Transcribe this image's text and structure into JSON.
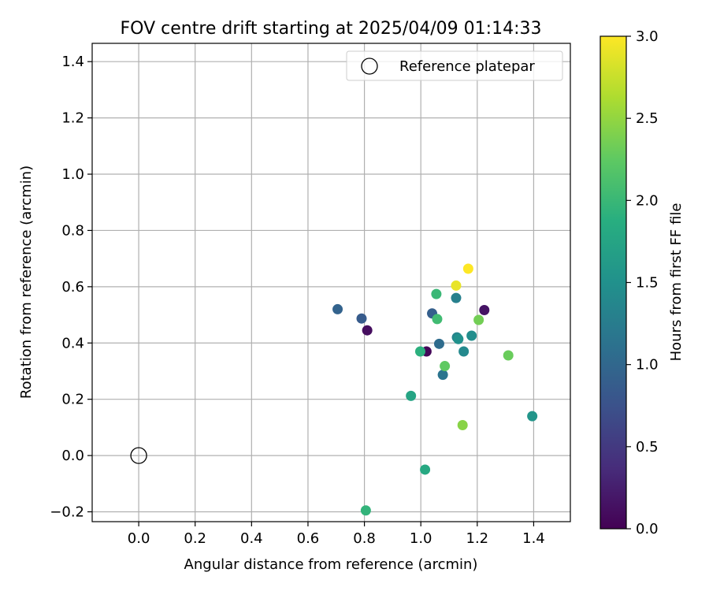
{
  "chart_data": {
    "type": "scatter",
    "title": "FOV centre drift starting at 2025/04/09 01:14:33",
    "xlabel": "Angular distance from reference (arcmin)",
    "ylabel": "Rotation from reference (arcmin)",
    "xlim": [
      -0.165,
      1.53
    ],
    "ylim": [
      -0.235,
      1.465
    ],
    "xticks": [
      0.0,
      0.2,
      0.4,
      0.6,
      0.8,
      1.0,
      1.2,
      1.4
    ],
    "xtick_labels": [
      "0.0",
      "0.2",
      "0.4",
      "0.6",
      "0.8",
      "1.0",
      "1.2",
      "1.4"
    ],
    "yticks": [
      -0.2,
      0.0,
      0.2,
      0.4,
      0.6,
      0.8,
      1.0,
      1.2,
      1.4
    ],
    "ytick_labels": [
      "−0.2",
      "0.0",
      "0.2",
      "0.4",
      "0.6",
      "0.8",
      "1.0",
      "1.2",
      "1.4"
    ],
    "grid": true,
    "legend": {
      "placement": "upper-right",
      "entries": [
        {
          "label": "Reference platepar",
          "marker": "open-circle"
        }
      ]
    },
    "reference_point": {
      "x": 0.0,
      "y": 0.0,
      "label": "Reference platepar"
    },
    "colorbar": {
      "label": "Hours from first FF file",
      "colormap": "viridis",
      "range": [
        0.0,
        3.0
      ],
      "ticks": [
        0.0,
        0.5,
        1.0,
        1.5,
        2.0,
        2.5,
        3.0
      ],
      "tick_labels": [
        "0.0",
        "0.5",
        "1.0",
        "1.5",
        "2.0",
        "2.5",
        "3.0"
      ]
    },
    "points": [
      {
        "x": 1.02,
        "y": 0.37,
        "c": 0.05
      },
      {
        "x": 0.81,
        "y": 0.445,
        "c": 0.1
      },
      {
        "x": 1.225,
        "y": 0.517,
        "c": 0.15
      },
      {
        "x": 0.79,
        "y": 0.487,
        "c": 0.85
      },
      {
        "x": 1.04,
        "y": 0.505,
        "c": 0.9
      },
      {
        "x": 0.705,
        "y": 0.52,
        "c": 0.95
      },
      {
        "x": 1.065,
        "y": 0.397,
        "c": 1.05
      },
      {
        "x": 1.078,
        "y": 0.287,
        "c": 1.15
      },
      {
        "x": 1.125,
        "y": 0.56,
        "c": 1.3
      },
      {
        "x": 1.128,
        "y": 0.42,
        "c": 1.35
      },
      {
        "x": 1.152,
        "y": 0.37,
        "c": 1.4
      },
      {
        "x": 1.18,
        "y": 0.426,
        "c": 1.45
      },
      {
        "x": 1.133,
        "y": 0.414,
        "c": 1.5
      },
      {
        "x": 1.395,
        "y": 0.14,
        "c": 1.55
      },
      {
        "x": 0.965,
        "y": 0.212,
        "c": 1.75
      },
      {
        "x": 1.015,
        "y": -0.05,
        "c": 1.8
      },
      {
        "x": 0.998,
        "y": 0.37,
        "c": 1.9
      },
      {
        "x": 0.805,
        "y": -0.195,
        "c": 1.95
      },
      {
        "x": 1.055,
        "y": 0.574,
        "c": 2.0
      },
      {
        "x": 1.058,
        "y": 0.485,
        "c": 2.05
      },
      {
        "x": 1.085,
        "y": 0.318,
        "c": 2.25
      },
      {
        "x": 1.31,
        "y": 0.356,
        "c": 2.3
      },
      {
        "x": 1.205,
        "y": 0.482,
        "c": 2.35
      },
      {
        "x": 1.148,
        "y": 0.108,
        "c": 2.45
      },
      {
        "x": 1.125,
        "y": 0.604,
        "c": 2.9
      },
      {
        "x": 1.168,
        "y": 0.664,
        "c": 3.0
      }
    ]
  }
}
